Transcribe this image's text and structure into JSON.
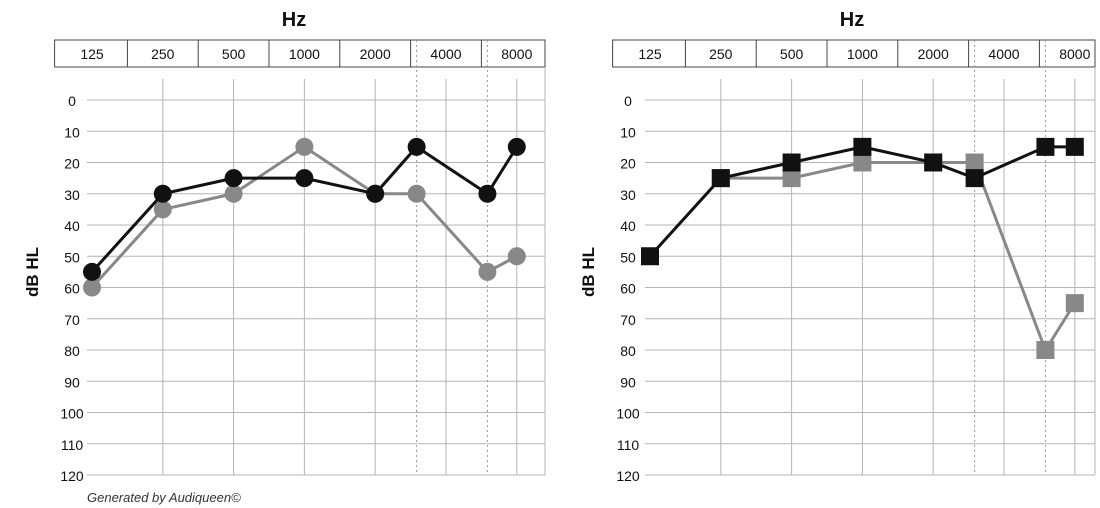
{
  "footer_text": "Generated by Audiqueen©",
  "chart_data": [
    {
      "type": "line",
      "id": "left",
      "x_label": "Hz",
      "y_label": "dB HL",
      "freq_labels": [
        "125",
        "250",
        "500",
        "1000",
        "2000",
        "4000",
        "8000"
      ],
      "y_ticks": [
        0,
        10,
        20,
        30,
        40,
        50,
        60,
        70,
        80,
        90,
        100,
        110,
        120
      ],
      "ylim": [
        0,
        120
      ],
      "y_inverted": true,
      "marker": "circle",
      "series": [
        {
          "color": "#888888",
          "points": [
            {
              "f": 125,
              "v": 60
            },
            {
              "f": 250,
              "v": 35
            },
            {
              "f": 500,
              "v": 30
            },
            {
              "f": 1000,
              "v": 15
            },
            {
              "f": 2000,
              "v": 30
            },
            {
              "f": 3000,
              "v": 30
            },
            {
              "f": 6000,
              "v": 55
            },
            {
              "f": 8000,
              "v": 50
            }
          ]
        },
        {
          "color": "#111111",
          "points": [
            {
              "f": 125,
              "v": 55
            },
            {
              "f": 250,
              "v": 30
            },
            {
              "f": 500,
              "v": 25
            },
            {
              "f": 1000,
              "v": 25
            },
            {
              "f": 2000,
              "v": 30
            },
            {
              "f": 3000,
              "v": 15
            },
            {
              "f": 6000,
              "v": 30
            },
            {
              "f": 8000,
              "v": 15
            }
          ]
        }
      ]
    },
    {
      "type": "line",
      "id": "right",
      "x_label": "Hz",
      "y_label": "dB HL",
      "freq_labels": [
        "125",
        "250",
        "500",
        "1000",
        "2000",
        "4000",
        "8000"
      ],
      "y_ticks": [
        0,
        10,
        20,
        30,
        40,
        50,
        60,
        70,
        80,
        90,
        100,
        110,
        120
      ],
      "ylim": [
        0,
        120
      ],
      "y_inverted": true,
      "marker": "square",
      "series": [
        {
          "color": "#888888",
          "points": [
            {
              "f": 250,
              "v": 25
            },
            {
              "f": 500,
              "v": 25
            },
            {
              "f": 1000,
              "v": 20
            },
            {
              "f": 2000,
              "v": 20
            },
            {
              "f": 3000,
              "v": 20
            },
            {
              "f": 6000,
              "v": 80
            },
            {
              "f": 8000,
              "v": 65
            }
          ]
        },
        {
          "color": "#111111",
          "points": [
            {
              "f": 125,
              "v": 50
            },
            {
              "f": 250,
              "v": 25
            },
            {
              "f": 500,
              "v": 20
            },
            {
              "f": 1000,
              "v": 15
            },
            {
              "f": 2000,
              "v": 20
            },
            {
              "f": 3000,
              "v": 25
            },
            {
              "f": 6000,
              "v": 15
            },
            {
              "f": 8000,
              "v": 15
            }
          ]
        }
      ]
    }
  ]
}
